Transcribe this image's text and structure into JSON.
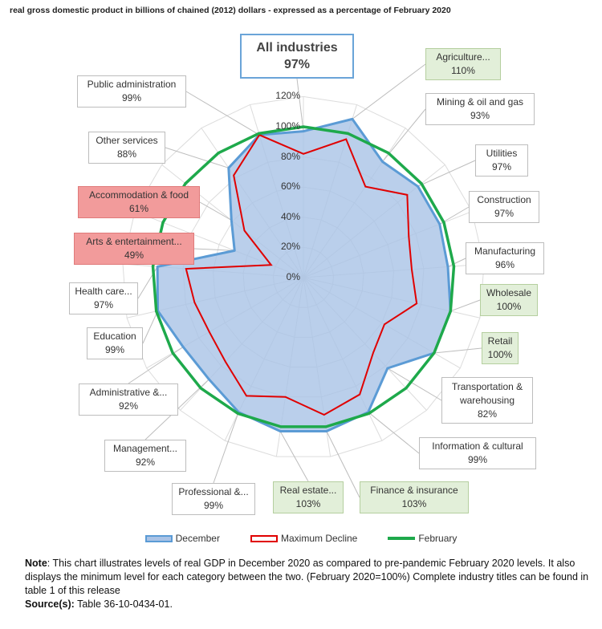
{
  "title": "real gross domestic product in billions of chained (2012) dollars - expressed as a percentage of February 2020",
  "chart_data": {
    "type": "radar",
    "title": "real gross domestic product in billions of chained (2012) dollars - expressed as a percentage of February 2020",
    "radial_ticks": [
      "0%",
      "20%",
      "40%",
      "60%",
      "80%",
      "100%",
      "120%"
    ],
    "rlim": [
      0,
      120
    ],
    "categories": [
      "All industries",
      "Agriculture...",
      "Mining & oil and gas",
      "Utilities",
      "Construction",
      "Manufacturing",
      "Wholesale",
      "Retail",
      "Transportation & warehousing",
      "Information & cultural",
      "Finance & insurance",
      "Real estate...",
      "Professional &...",
      "Management...",
      "Administrative &...",
      "Education",
      "Health care...",
      "Arts & entertainment...",
      "Accommodation & food",
      "Other services",
      "Public administration"
    ],
    "series": [
      {
        "name": "December",
        "values": [
          97,
          110,
          93,
          97,
          97,
          96,
          100,
          100,
          82,
          99,
          103,
          103,
          99,
          92,
          92,
          99,
          97,
          49,
          61,
          88,
          99
        ]
      },
      {
        "name": "Maximum Decline",
        "values": [
          82,
          96,
          73,
          88,
          75,
          72,
          77,
          62,
          68,
          86,
          92,
          80,
          87,
          76,
          72,
          74,
          78,
          23,
          50,
          82,
          99
        ]
      },
      {
        "name": "February",
        "values": [
          100,
          100,
          100,
          100,
          100,
          100,
          100,
          100,
          100,
          100,
          100,
          100,
          100,
          100,
          100,
          100,
          100,
          100,
          100,
          100,
          100
        ]
      }
    ],
    "labels": [
      {
        "name": "All industries",
        "value": "97%"
      },
      {
        "name": "Agriculture...",
        "value": "110%"
      },
      {
        "name": "Mining & oil and gas",
        "value": "93%"
      },
      {
        "name": "Utilities",
        "value": "97%"
      },
      {
        "name": "Construction",
        "value": "97%"
      },
      {
        "name": "Manufacturing",
        "value": "96%"
      },
      {
        "name": "Wholesale",
        "value": "100%"
      },
      {
        "name": "Retail",
        "value": "100%"
      },
      {
        "name": "Transportation & warehousing",
        "value": "82%"
      },
      {
        "name": "Information & cultural",
        "value": "99%"
      },
      {
        "name": "Finance &  insurance",
        "value": "103%"
      },
      {
        "name": "Real estate...",
        "value": "103%"
      },
      {
        "name": "Professional &...",
        "value": "99%"
      },
      {
        "name": "Management...",
        "value": "92%"
      },
      {
        "name": "Administrative &...",
        "value": "92%"
      },
      {
        "name": "Education",
        "value": "99%"
      },
      {
        "name": "Health care...",
        "value": "97%"
      },
      {
        "name": "Arts & entertainment...",
        "value": "49%"
      },
      {
        "name": "Accommodation & food",
        "value": "61%"
      },
      {
        "name": "Other services",
        "value": "88%"
      },
      {
        "name": "Public administration",
        "value": "99%"
      }
    ],
    "legend": [
      "December",
      "Maximum Decline",
      "February"
    ],
    "colors": {
      "december_fill": "#a9c3e6",
      "december_line": "#5b9bd5",
      "decline": "#e00000",
      "february": "#1ea94b",
      "grid": "#dcdcdc"
    }
  },
  "note": {
    "label": "Note",
    "text": ": This chart illustrates levels of real GDP in December 2020 as compared to pre-pandemic February 2020 levels. It also displays the minimum level for each category between the two. (February 2020=100%) Complete industry titles can be found in table 1 of this release",
    "source_label": "Source(s):",
    "source_text": " Table 36-10-0434-01."
  }
}
